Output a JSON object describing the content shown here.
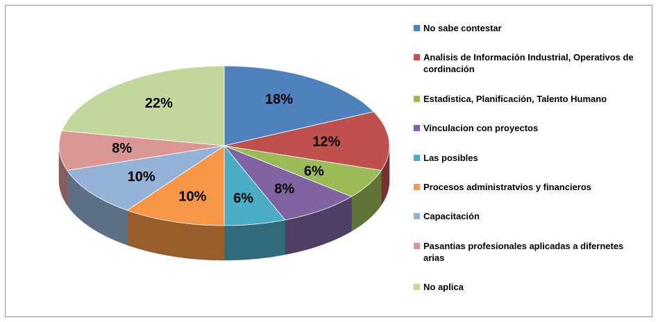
{
  "chart_data": {
    "type": "pie3d",
    "categories": [
      "No sabe contestar",
      "Analisis de Información Industrial, Operativos de cordinación",
      "Estadistica, Planificación, Talento Humano",
      "Vinculacion con proyectos",
      "Las posibles",
      "Procesos administratvios y financieros",
      "Capacitación",
      "Pasantias profesionales aplicadas a difernetes arias",
      "No aplica"
    ],
    "values": [
      18,
      12,
      6,
      8,
      6,
      10,
      10,
      8,
      22
    ],
    "value_labels": [
      "18%",
      "12%",
      "6%",
      "8%",
      "6%",
      "10%",
      "10%",
      "8%",
      "22%"
    ],
    "colors": [
      "#4f81bd",
      "#c0504d",
      "#9bbb59",
      "#8064a2",
      "#4bacc6",
      "#f79646",
      "#95b3d7",
      "#d99694",
      "#c3d69b"
    ],
    "legend": "right"
  }
}
